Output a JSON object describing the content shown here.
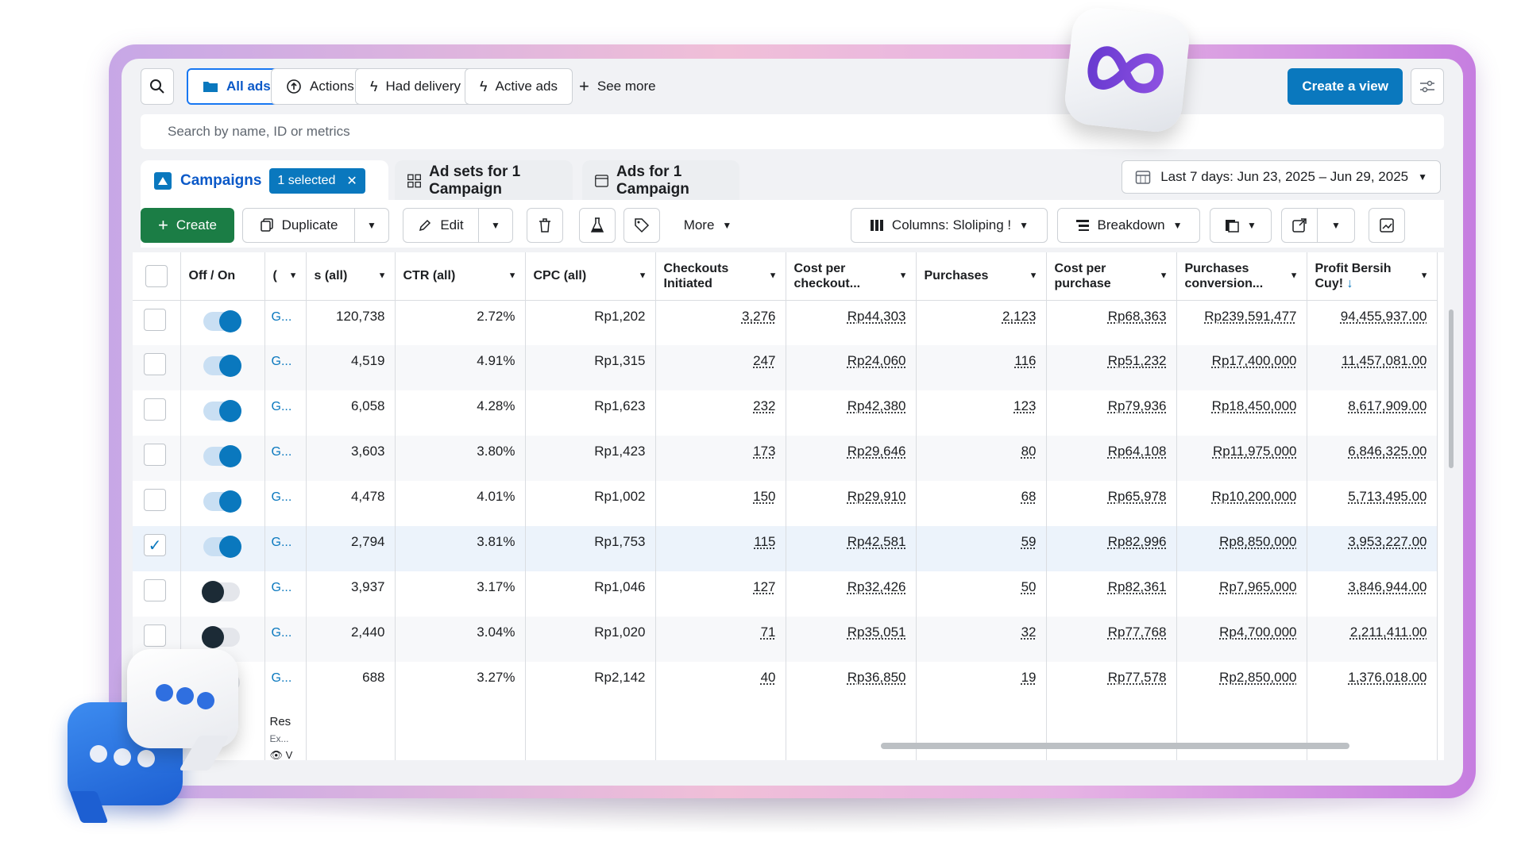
{
  "toolbar_top": {
    "all_ads": "All ads",
    "actions": "Actions",
    "had_delivery": "Had delivery",
    "active_ads": "Active ads",
    "see_more": "See more",
    "create_view": "Create a view"
  },
  "search": {
    "placeholder": "Search by name, ID or metrics"
  },
  "tabs": {
    "campaigns": "Campaigns",
    "selected": "1 selected",
    "ad_sets": "Ad sets for 1 Campaign",
    "ads": "Ads for 1 Campaign",
    "date_range": "Last 7 days: Jun 23, 2025 – Jun 29, 2025"
  },
  "actions_bar": {
    "create": "Create",
    "duplicate": "Duplicate",
    "edit": "Edit",
    "more": "More",
    "columns": "Columns: Sloliping !",
    "breakdown": "Breakdown"
  },
  "table": {
    "headers": {
      "off_on": "Off / On",
      "name_partial": "(",
      "results_all": "s (all)",
      "ctr": "CTR (all)",
      "cpc": "CPC (all)",
      "checkouts_initiated": "Checkouts Initiated",
      "cost_per_checkout": "Cost per checkout...",
      "purchases": "Purchases",
      "cost_per_purchase": "Cost per purchase",
      "purchases_conversion": "Purchases conversion...",
      "profit": "Profit Bersih Cuy!"
    },
    "rows": [
      {
        "on": true,
        "selected": false,
        "name": "G...",
        "results": "120,738",
        "ctr": "2.72%",
        "cpc": "Rp1,202",
        "checkouts": "3,276",
        "cost_checkout": "Rp44,303",
        "purchases": "2,123",
        "cost_purchase": "Rp68,363",
        "conv_value": "Rp239,591,477",
        "profit": "94,455,937.00"
      },
      {
        "on": true,
        "selected": false,
        "name": "G...",
        "results": "4,519",
        "ctr": "4.91%",
        "cpc": "Rp1,315",
        "checkouts": "247",
        "cost_checkout": "Rp24,060",
        "purchases": "116",
        "cost_purchase": "Rp51,232",
        "conv_value": "Rp17,400,000",
        "profit": "11,457,081.00"
      },
      {
        "on": true,
        "selected": false,
        "name": "G...",
        "results": "6,058",
        "ctr": "4.28%",
        "cpc": "Rp1,623",
        "checkouts": "232",
        "cost_checkout": "Rp42,380",
        "purchases": "123",
        "cost_purchase": "Rp79,936",
        "conv_value": "Rp18,450,000",
        "profit": "8,617,909.00"
      },
      {
        "on": true,
        "selected": false,
        "name": "G...",
        "results": "3,603",
        "ctr": "3.80%",
        "cpc": "Rp1,423",
        "checkouts": "173",
        "cost_checkout": "Rp29,646",
        "purchases": "80",
        "cost_purchase": "Rp64,108",
        "conv_value": "Rp11,975,000",
        "profit": "6,846,325.00"
      },
      {
        "on": true,
        "selected": false,
        "name": "G...",
        "results": "4,478",
        "ctr": "4.01%",
        "cpc": "Rp1,002",
        "checkouts": "150",
        "cost_checkout": "Rp29,910",
        "purchases": "68",
        "cost_purchase": "Rp65,978",
        "conv_value": "Rp10,200,000",
        "profit": "5,713,495.00"
      },
      {
        "on": true,
        "selected": true,
        "name": "G...",
        "results": "2,794",
        "ctr": "3.81%",
        "cpc": "Rp1,753",
        "checkouts": "115",
        "cost_checkout": "Rp42,581",
        "purchases": "59",
        "cost_purchase": "Rp82,996",
        "conv_value": "Rp8,850,000",
        "profit": "3,953,227.00"
      },
      {
        "on": false,
        "selected": false,
        "name": "G...",
        "results": "3,937",
        "ctr": "3.17%",
        "cpc": "Rp1,046",
        "checkouts": "127",
        "cost_checkout": "Rp32,426",
        "purchases": "50",
        "cost_purchase": "Rp82,361",
        "conv_value": "Rp7,965,000",
        "profit": "3,846,944.00"
      },
      {
        "on": false,
        "selected": false,
        "name": "G...",
        "results": "2,440",
        "ctr": "3.04%",
        "cpc": "Rp1,020",
        "checkouts": "71",
        "cost_checkout": "Rp35,051",
        "purchases": "32",
        "cost_purchase": "Rp77,768",
        "conv_value": "Rp4,700,000",
        "profit": "2,211,411.00"
      },
      {
        "on": false,
        "selected": false,
        "name": "G...",
        "results": "688",
        "ctr": "3.27%",
        "cpc": "Rp2,142",
        "checkouts": "40",
        "cost_checkout": "Rp36,850",
        "purchases": "19",
        "cost_purchase": "Rp77,578",
        "conv_value": "Rp2,850,000",
        "profit": "1,376,018.00"
      }
    ],
    "footer": {
      "line1": "Res",
      "line2": "Ex...",
      "line3": "V"
    }
  },
  "colors": {
    "accent": "#0a78be",
    "green": "#1b7d45",
    "frame": "#c67ee0"
  },
  "icons": [
    "search-icon",
    "folder-icon",
    "actions-icon",
    "lightning-icon",
    "plus-icon",
    "sliders-icon",
    "campaign-icon",
    "grid-icon",
    "ad-icon",
    "calendar-icon",
    "duplicate-icon",
    "pencil-icon",
    "trash-icon",
    "flask-icon",
    "tag-icon",
    "columns-icon",
    "breakdown-icon",
    "report-icon",
    "export-icon",
    "chart-icon",
    "eye-icon",
    "meta-logo",
    "chat-bubbles"
  ]
}
